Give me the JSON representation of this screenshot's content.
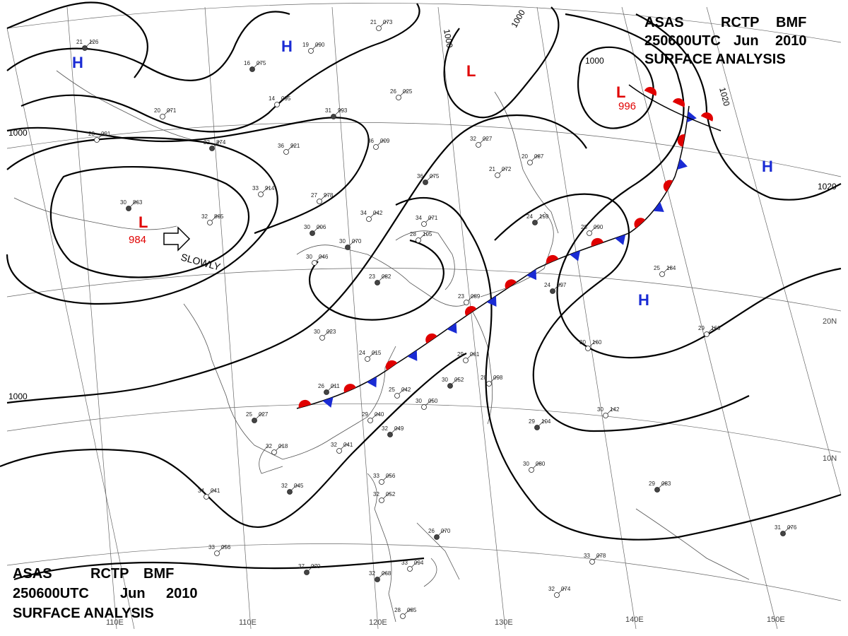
{
  "header_top": {
    "line1": [
      "ASAS",
      "RCTP",
      "BMF"
    ],
    "line2": [
      "250600UTC",
      "Jun",
      "2010"
    ],
    "line3": "SURFACE ANALYSIS"
  },
  "header_bottom": {
    "line1": [
      "ASAS",
      "RCTP",
      "BMF"
    ],
    "line2": [
      "250600UTC",
      "Jun",
      "2010"
    ],
    "line3": "SURFACE ANALYSIS"
  },
  "lows": [
    {
      "letter": "L",
      "value": "984"
    },
    {
      "letter": "L",
      "value": "996"
    },
    {
      "letter": "L",
      "value": ""
    }
  ],
  "highs": [
    "H",
    "H",
    "H",
    "H"
  ],
  "motion": "SLOWLY",
  "isobars": [
    "1000",
    "1000",
    "1000",
    "1000",
    "1020",
    "1020",
    "1000"
  ],
  "longitudes": [
    "110E",
    "120E",
    "130E",
    "140E",
    "150E"
  ],
  "latitudes": [
    "20N",
    "10N"
  ],
  "stations": [
    {
      "t": "21",
      "p": "126"
    },
    {
      "t": "19",
      "p": "090"
    },
    {
      "t": "21",
      "p": "073"
    },
    {
      "t": "16",
      "p": "075"
    },
    {
      "t": "14",
      "p": "095"
    },
    {
      "t": "26",
      "p": "025"
    },
    {
      "t": "31",
      "p": "993"
    },
    {
      "t": "20",
      "p": "071"
    },
    {
      "t": "23",
      "p": "091"
    },
    {
      "t": "22",
      "p": "874"
    },
    {
      "t": "36",
      "p": "921"
    },
    {
      "t": "33",
      "p": "914"
    },
    {
      "t": "30",
      "p": "863"
    },
    {
      "t": "32",
      "p": "865"
    },
    {
      "t": "27",
      "p": "978"
    },
    {
      "t": "30",
      "p": "006"
    },
    {
      "t": "36",
      "p": "009"
    },
    {
      "t": "32",
      "p": "027"
    },
    {
      "t": "36",
      "p": "075"
    },
    {
      "t": "34",
      "p": "042"
    },
    {
      "t": "34",
      "p": "071"
    },
    {
      "t": "30",
      "p": "070"
    },
    {
      "t": "30",
      "p": "046"
    },
    {
      "t": "28",
      "p": "105"
    },
    {
      "t": "23",
      "p": "082"
    },
    {
      "t": "20",
      "p": "087"
    },
    {
      "t": "21",
      "p": "072"
    },
    {
      "t": "24",
      "p": "159"
    },
    {
      "t": "28",
      "p": "090"
    },
    {
      "t": "25",
      "p": "184"
    },
    {
      "t": "24",
      "p": "097"
    },
    {
      "t": "30",
      "p": "023"
    },
    {
      "t": "24",
      "p": "015"
    },
    {
      "t": "26",
      "p": "011"
    },
    {
      "t": "23",
      "p": "089"
    },
    {
      "t": "29",
      "p": "061"
    },
    {
      "t": "30",
      "p": "052"
    },
    {
      "t": "28",
      "p": "098"
    },
    {
      "t": "25",
      "p": "042"
    },
    {
      "t": "25",
      "p": "027"
    },
    {
      "t": "29",
      "p": "040"
    },
    {
      "t": "30",
      "p": "050"
    },
    {
      "t": "32",
      "p": "049"
    },
    {
      "t": "32",
      "p": "018"
    },
    {
      "t": "32",
      "p": "041"
    },
    {
      "t": "32",
      "p": "045"
    },
    {
      "t": "34",
      "p": "041"
    },
    {
      "t": "33",
      "p": "056"
    },
    {
      "t": "37",
      "p": "070"
    },
    {
      "t": "33",
      "p": "056"
    },
    {
      "t": "32",
      "p": "052"
    },
    {
      "t": "29",
      "p": "104"
    },
    {
      "t": "30",
      "p": "080"
    },
    {
      "t": "30",
      "p": "142"
    },
    {
      "t": "29",
      "p": "083"
    },
    {
      "t": "30",
      "p": "160"
    },
    {
      "t": "29",
      "p": "166"
    },
    {
      "t": "31",
      "p": "076"
    },
    {
      "t": "33",
      "p": "078"
    },
    {
      "t": "32",
      "p": "074"
    },
    {
      "t": "32",
      "p": "068"
    },
    {
      "t": "33",
      "p": "094"
    },
    {
      "t": "28",
      "p": "085"
    },
    {
      "t": "26",
      "p": "070"
    }
  ],
  "colors": {
    "low": "#e00000",
    "high": "#1a2bd4",
    "warm_front": "#e00000",
    "cold_front": "#1a2bd4"
  }
}
